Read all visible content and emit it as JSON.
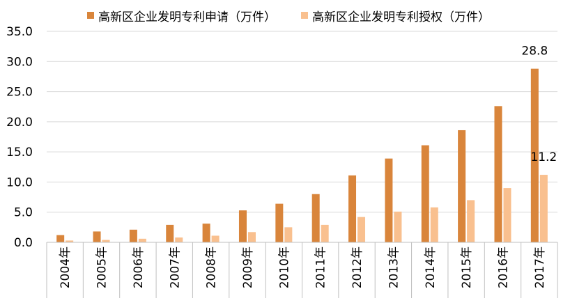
{
  "colors": {
    "applications": "#D9853B",
    "grants": "#F9C08F",
    "axis": "#bfbfbf",
    "grid": "#d9d9d9"
  },
  "chart_data": {
    "type": "bar",
    "categories": [
      "2004年",
      "2005年",
      "2006年",
      "2007年",
      "2008年",
      "2009年",
      "2010年",
      "2011年",
      "2012年",
      "2013年",
      "2014年",
      "2015年",
      "2016年",
      "2017年"
    ],
    "series": [
      {
        "name": "高新区企业发明专利申请（万件）",
        "values": [
          1.2,
          1.8,
          2.1,
          2.9,
          3.1,
          5.3,
          6.4,
          8.0,
          11.1,
          13.9,
          16.1,
          18.6,
          22.6,
          28.8
        ]
      },
      {
        "name": "高新区企业发明专利授权（万件）",
        "values": [
          0.3,
          0.4,
          0.6,
          0.8,
          1.1,
          1.7,
          2.5,
          2.9,
          4.2,
          5.1,
          5.8,
          7.0,
          9.0,
          11.2
        ]
      }
    ],
    "yticks": [
      "0.0",
      "5.0",
      "10.0",
      "15.0",
      "20.0",
      "25.0",
      "30.0",
      "35.0"
    ],
    "ylim": [
      0,
      35
    ],
    "data_labels": [
      {
        "series": 0,
        "index": 13,
        "text": "28.8"
      },
      {
        "series": 1,
        "index": 13,
        "text": "11.2"
      }
    ],
    "grid": true,
    "legend_position": "top"
  }
}
